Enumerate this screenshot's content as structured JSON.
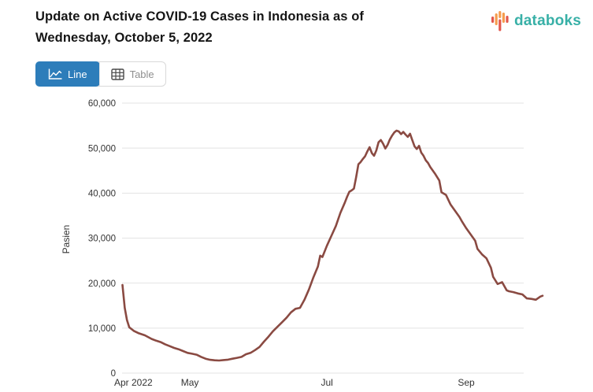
{
  "header": {
    "title_line1": "Update on Active COVID-19 Cases in Indonesia as of",
    "title_line2": "Wednesday, October 5, 2022"
  },
  "brand": {
    "name": "databoks",
    "text_color": "#38b0a7",
    "icon_bar_colors": [
      "#e2574c",
      "#f59c4e",
      "#f59c4e",
      "#e2574c",
      "#f59c4e",
      "#e2574c"
    ]
  },
  "toolbar": {
    "line_label": "Line",
    "table_label": "Table",
    "active_view": "Line",
    "active_bg": "#2d7dba"
  },
  "chart_data": {
    "type": "line",
    "title": "Update on Active COVID-19 Cases in Indonesia as of Wednesday, October 5, 2022",
    "xlabel": "",
    "ylabel": "Pasien",
    "ylim": [
      0,
      60000
    ],
    "ytick_step": 10000,
    "ytick_labels": [
      "0",
      "10,000",
      "20,000",
      "30,000",
      "40,000",
      "50,000",
      "60,000"
    ],
    "xtick_labels": [
      "Apr 2022",
      "May",
      "Jul",
      "Sep"
    ],
    "xtick_dates": [
      "2022-04-01",
      "2022-05-01",
      "2022-07-01",
      "2022-09-01"
    ],
    "x_range": [
      "2022-04-01",
      "2022-10-05"
    ],
    "grid": "horizontal",
    "legend": "none",
    "series_color": "#8a4a42",
    "series": [
      {
        "name": "Pasien",
        "points": [
          [
            "2022-04-01",
            19600
          ],
          [
            "2022-04-02",
            14500
          ],
          [
            "2022-04-03",
            11800
          ],
          [
            "2022-04-04",
            10200
          ],
          [
            "2022-04-06",
            9400
          ],
          [
            "2022-04-08",
            8900
          ],
          [
            "2022-04-11",
            8400
          ],
          [
            "2022-04-14",
            7600
          ],
          [
            "2022-04-16",
            7200
          ],
          [
            "2022-04-18",
            6900
          ],
          [
            "2022-04-20",
            6400
          ],
          [
            "2022-04-22",
            6000
          ],
          [
            "2022-04-24",
            5600
          ],
          [
            "2022-04-26",
            5300
          ],
          [
            "2022-04-28",
            4900
          ],
          [
            "2022-04-30",
            4500
          ],
          [
            "2022-05-02",
            4300
          ],
          [
            "2022-05-04",
            4100
          ],
          [
            "2022-05-06",
            3600
          ],
          [
            "2022-05-08",
            3200
          ],
          [
            "2022-05-10",
            2950
          ],
          [
            "2022-05-12",
            2850
          ],
          [
            "2022-05-14",
            2800
          ],
          [
            "2022-05-16",
            2900
          ],
          [
            "2022-05-18",
            3000
          ],
          [
            "2022-05-20",
            3200
          ],
          [
            "2022-05-22",
            3400
          ],
          [
            "2022-05-24",
            3600
          ],
          [
            "2022-05-26",
            4200
          ],
          [
            "2022-05-28",
            4500
          ],
          [
            "2022-05-30",
            5100
          ],
          [
            "2022-06-01",
            5800
          ],
          [
            "2022-06-03",
            7000
          ],
          [
            "2022-06-05",
            8100
          ],
          [
            "2022-06-07",
            9300
          ],
          [
            "2022-06-09",
            10300
          ],
          [
            "2022-06-11",
            11300
          ],
          [
            "2022-06-13",
            12300
          ],
          [
            "2022-06-15",
            13500
          ],
          [
            "2022-06-17",
            14300
          ],
          [
            "2022-06-19",
            14500
          ],
          [
            "2022-06-21",
            16300
          ],
          [
            "2022-06-23",
            18600
          ],
          [
            "2022-06-25",
            21300
          ],
          [
            "2022-06-27",
            23700
          ],
          [
            "2022-06-28",
            26100
          ],
          [
            "2022-06-29",
            25800
          ],
          [
            "2022-07-01",
            28300
          ],
          [
            "2022-07-03",
            30500
          ],
          [
            "2022-07-05",
            32700
          ],
          [
            "2022-07-07",
            35600
          ],
          [
            "2022-07-09",
            37900
          ],
          [
            "2022-07-10",
            39200
          ],
          [
            "2022-07-11",
            40300
          ],
          [
            "2022-07-12",
            40600
          ],
          [
            "2022-07-13",
            41000
          ],
          [
            "2022-07-14",
            43500
          ],
          [
            "2022-07-15",
            46400
          ],
          [
            "2022-07-16",
            46900
          ],
          [
            "2022-07-17",
            47600
          ],
          [
            "2022-07-18",
            48200
          ],
          [
            "2022-07-19",
            49300
          ],
          [
            "2022-07-20",
            50200
          ],
          [
            "2022-07-21",
            48900
          ],
          [
            "2022-07-22",
            48300
          ],
          [
            "2022-07-23",
            49500
          ],
          [
            "2022-07-24",
            51300
          ],
          [
            "2022-07-25",
            51800
          ],
          [
            "2022-07-26",
            51000
          ],
          [
            "2022-07-27",
            49900
          ],
          [
            "2022-07-28",
            50700
          ],
          [
            "2022-07-29",
            51900
          ],
          [
            "2022-07-30",
            52800
          ],
          [
            "2022-07-31",
            53500
          ],
          [
            "2022-08-01",
            53900
          ],
          [
            "2022-08-02",
            53700
          ],
          [
            "2022-08-03",
            53100
          ],
          [
            "2022-08-04",
            53600
          ],
          [
            "2022-08-05",
            53000
          ],
          [
            "2022-08-06",
            52500
          ],
          [
            "2022-08-07",
            53200
          ],
          [
            "2022-08-08",
            51800
          ],
          [
            "2022-08-09",
            50400
          ],
          [
            "2022-08-10",
            49800
          ],
          [
            "2022-08-11",
            50500
          ],
          [
            "2022-08-12",
            49000
          ],
          [
            "2022-08-13",
            48300
          ],
          [
            "2022-08-14",
            47300
          ],
          [
            "2022-08-15",
            46700
          ],
          [
            "2022-08-16",
            45800
          ],
          [
            "2022-08-18",
            44400
          ],
          [
            "2022-08-20",
            42800
          ],
          [
            "2022-08-21",
            40200
          ],
          [
            "2022-08-23",
            39600
          ],
          [
            "2022-08-25",
            37500
          ],
          [
            "2022-08-27",
            36100
          ],
          [
            "2022-08-29",
            34700
          ],
          [
            "2022-08-30",
            33800
          ],
          [
            "2022-09-01",
            32200
          ],
          [
            "2022-09-03",
            30800
          ],
          [
            "2022-09-05",
            29400
          ],
          [
            "2022-09-06",
            27600
          ],
          [
            "2022-09-08",
            26400
          ],
          [
            "2022-09-10",
            25500
          ],
          [
            "2022-09-12",
            23400
          ],
          [
            "2022-09-13",
            21400
          ],
          [
            "2022-09-15",
            19800
          ],
          [
            "2022-09-17",
            20200
          ],
          [
            "2022-09-19",
            18400
          ],
          [
            "2022-09-20",
            18200
          ],
          [
            "2022-09-22",
            18000
          ],
          [
            "2022-09-24",
            17700
          ],
          [
            "2022-09-26",
            17500
          ],
          [
            "2022-09-28",
            16600
          ],
          [
            "2022-09-30",
            16500
          ],
          [
            "2022-10-02",
            16300
          ],
          [
            "2022-10-04",
            17000
          ],
          [
            "2022-10-05",
            17200
          ]
        ]
      }
    ]
  }
}
